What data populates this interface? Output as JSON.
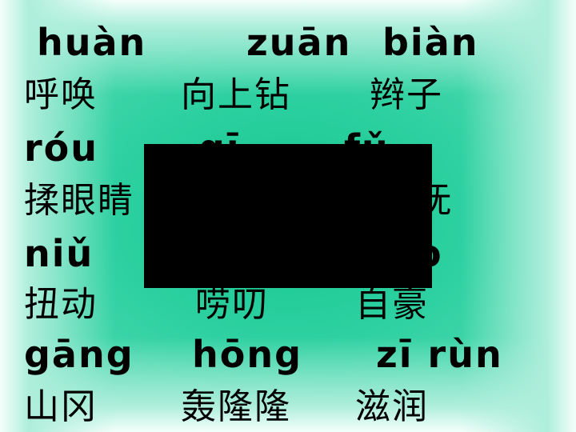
{
  "rows": [
    {
      "pinyin": [
        "huàn",
        "zuān",
        "biàn"
      ],
      "chars": [
        "呼唤",
        "向上钻",
        "辫子"
      ]
    },
    {
      "pinyin": [
        "róu",
        "qī",
        "fǔ"
      ],
      "chars": [
        "揉眼睛",
        "",
        "抚"
      ]
    },
    {
      "pinyin": [
        "niǔ",
        "",
        "o"
      ],
      "chars": [
        "扭动",
        "唠叨",
        "自豪"
      ]
    },
    {
      "pinyin": [
        "gāng",
        "hōng",
        "zī rùn"
      ],
      "chars": [
        "山冈",
        "轰隆隆",
        "滋润"
      ]
    }
  ],
  "colors": {
    "background_center": "#12c78f",
    "background_edge": "#f4fffb",
    "text": "#000000",
    "redaction": "#000000"
  }
}
